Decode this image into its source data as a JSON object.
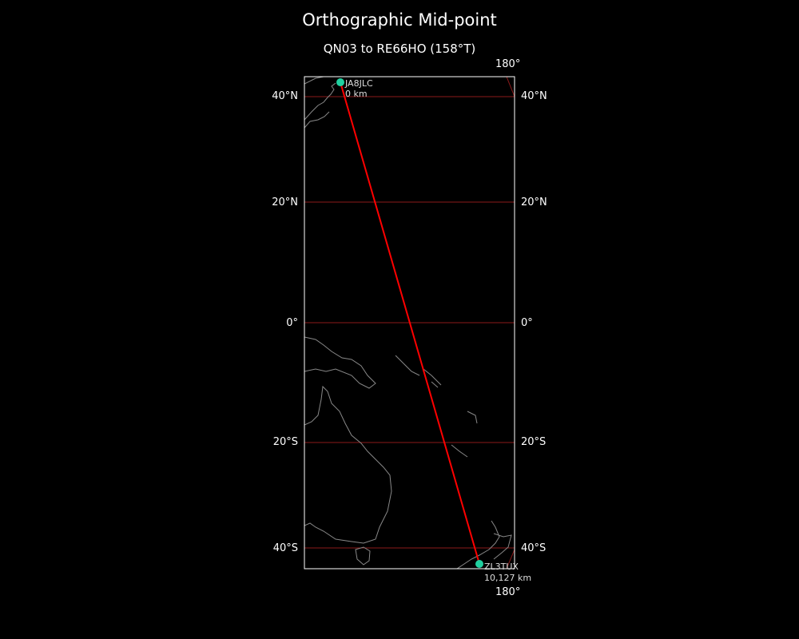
{
  "title": "Orthographic Mid-point",
  "subtitle": "QN03 to RE66HO (158°T)",
  "map": {
    "projection": "orthographic",
    "colors": {
      "background": "#000000",
      "coastline": "#888888",
      "graticule": "#8b1a1a",
      "path": "#ff0000",
      "marker": "#20d0a0",
      "frame": "#ffffff"
    },
    "meridian_labels": [
      "180°",
      "180°"
    ],
    "lat_labels_left": [
      "40°N",
      "20°N",
      "0°",
      "20°S",
      "40°S"
    ],
    "lat_labels_right": [
      "40°N",
      "20°N",
      "0°",
      "20°S",
      "40°S"
    ],
    "start": {
      "callsign": "JA8JLC",
      "distance": "0 km"
    },
    "end": {
      "callsign": "ZL3TUX",
      "distance": "10,127 km"
    }
  }
}
